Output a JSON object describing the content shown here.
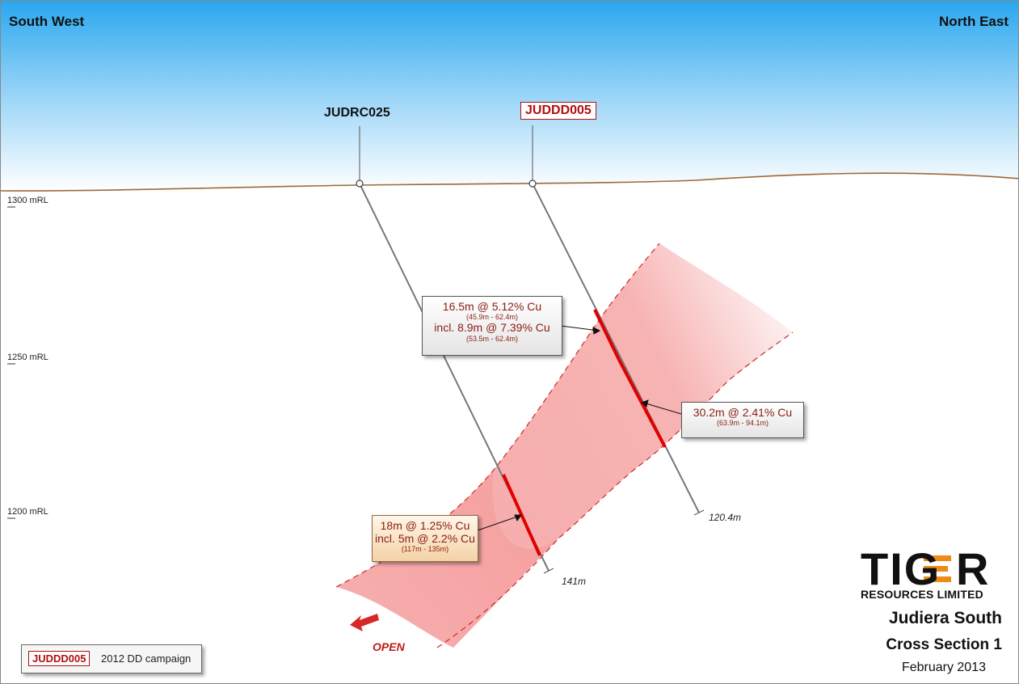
{
  "orientation": {
    "left": "South West",
    "right": "North East"
  },
  "holes": [
    {
      "id": "JUDRC025",
      "highlight": false,
      "depth_label": "141m"
    },
    {
      "id": "JUDDD005",
      "highlight": true,
      "depth_label": "120.4m"
    }
  ],
  "elevation_levels": [
    "1300 mRL",
    "1250 mRL",
    "1200 mRL"
  ],
  "intercepts": [
    {
      "line1": "16.5m @ 5.12% Cu",
      "line2": "(45.9m - 62.4m)",
      "line3": "incl. 8.9m @ 7.39% Cu",
      "line4": "(53.5m - 62.4m)"
    },
    {
      "line1": "30.2m @ 2.41% Cu",
      "line2": "(63.9m - 94.1m)"
    },
    {
      "line1": "18m @ 1.25% Cu",
      "line2": "incl. 5m @ 2.2% Cu",
      "line3": "(117m - 135m)"
    }
  ],
  "open_label": "OPEN",
  "legend": {
    "swatch": "JUDDD005",
    "text": "2012 DD campaign"
  },
  "logo": {
    "word_a": "TIG",
    "word_b": "R",
    "subtitle": "RESOURCES LIMITED"
  },
  "title": {
    "project": "Judiera South",
    "section": "Cross Section 1",
    "date": "February 2013"
  },
  "colors": {
    "sky_top": "#27a6ee",
    "sky_bottom": "#ffffff",
    "ground_line": "#9b6a3a",
    "zone": "#f7a6a6",
    "zone_edge": "#cc2a2a",
    "intercept": "#e00000",
    "hole_label_red": "#b01010"
  }
}
